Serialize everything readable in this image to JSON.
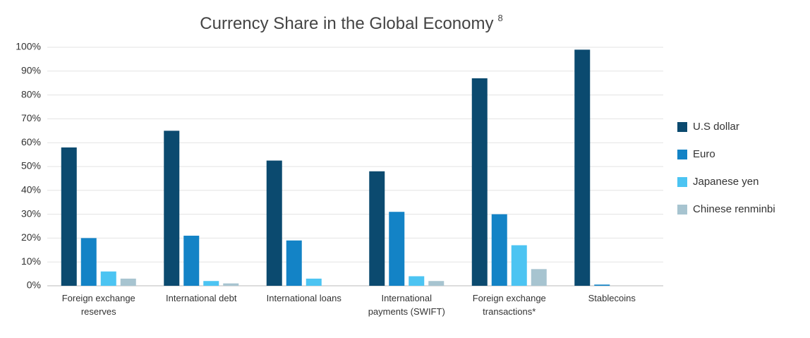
{
  "chart_data": {
    "type": "bar",
    "title": "Currency Share in the Global Economy",
    "title_superscript": "8",
    "categories": [
      "Foreign exchange reserves",
      "International debt",
      "International loans",
      "International payments (SWIFT)",
      "Foreign exchange transactions*",
      "Stablecoins"
    ],
    "series": [
      {
        "name": "U.S dollar",
        "color": "#0b4a6f",
        "values": [
          58,
          65,
          52.5,
          48,
          87,
          99
        ]
      },
      {
        "name": "Euro",
        "color": "#1383c6",
        "values": [
          20,
          21,
          19,
          31,
          30,
          0.5
        ]
      },
      {
        "name": "Japanese yen",
        "color": "#4cc4f2",
        "values": [
          6,
          2,
          3,
          4,
          17,
          0
        ]
      },
      {
        "name": "Chinese renminbi",
        "color": "#a7c4d0",
        "values": [
          3,
          1,
          0,
          2,
          7,
          0
        ]
      }
    ],
    "ylim": [
      0,
      100
    ],
    "yticks": [
      {
        "value": 0,
        "label": "0%"
      },
      {
        "value": 10,
        "label": "10%"
      },
      {
        "value": 20,
        "label": "20%"
      },
      {
        "value": 30,
        "label": "30%"
      },
      {
        "value": 40,
        "label": "40%"
      },
      {
        "value": 50,
        "label": "50%"
      },
      {
        "value": 60,
        "label": "60%"
      },
      {
        "value": 70,
        "label": "70%"
      },
      {
        "value": 80,
        "label": "80%"
      },
      {
        "value": 90,
        "label": "90%"
      },
      {
        "value": 100,
        "label": "100%"
      }
    ],
    "grid": true,
    "legend": "right"
  }
}
